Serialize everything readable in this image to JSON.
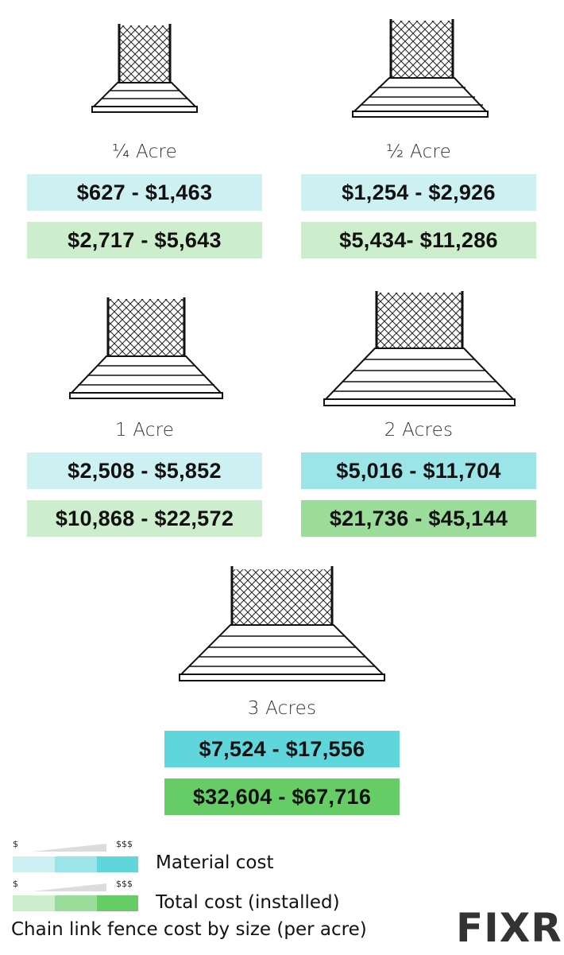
{
  "colors": {
    "material_light": "#cdf0f3",
    "material_mid": "#9be4e8",
    "material_dark": "#5fd5dc",
    "total_light": "#cdeecd",
    "total_mid": "#9bdc9b",
    "total_dark": "#66cc66",
    "logo_accent": "#2ec03e"
  },
  "sizes": [
    {
      "label": "¼ Acre",
      "material": "$627 - $1,463",
      "total": "$2,717 - $5,643",
      "level": "low"
    },
    {
      "label": "½ Acre",
      "material": "$1,254 - $2,926",
      "total": "$5,434- $11,286",
      "level": "low"
    },
    {
      "label": "1 Acre",
      "material": "$2,508 - $5,852",
      "total": "$10,868 - $22,572",
      "level": "low"
    },
    {
      "label": "2 Acres",
      "material": "$5,016 - $11,704",
      "total": "$21,736 - $45,144",
      "level": "mid"
    },
    {
      "label": "3 Acres",
      "material": "$7,524 - $17,556",
      "total": "$32,604 - $67,716",
      "level": "high"
    }
  ],
  "legend": {
    "scale_low": "$",
    "scale_high": "$$$",
    "material_label": "Material cost",
    "total_label": "Total cost (installed)"
  },
  "caption": "Chain link fence cost by size (per acre)",
  "logo": "Fixr",
  "icons": [
    "chain-link-fence-icon"
  ]
}
